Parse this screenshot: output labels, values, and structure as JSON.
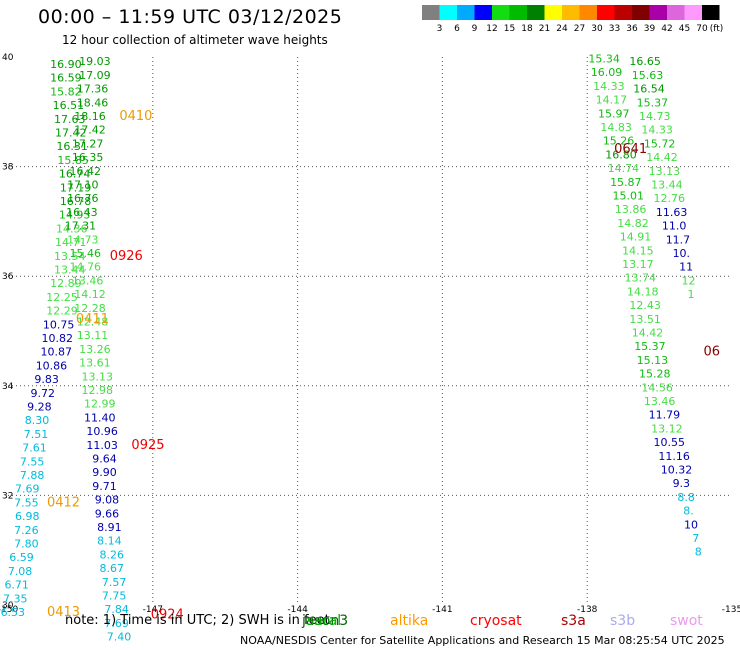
{
  "title": "00:00 – 11:59 UTC 03/12/2025",
  "subtitle": "12 hour collection of altimeter wave heights",
  "note": "note: 1) Time is in UTC; 2) SWH is in feet",
  "footer": "NOAA/NESDIS Center for Satellite Applications and Research    15 Mar 08:25:54 UTC 2025",
  "colorbar": {
    "unit": "(ft)",
    "labels": [
      "3",
      "6",
      "9",
      "12",
      "15",
      "18",
      "21",
      "24",
      "27",
      "30",
      "33",
      "36",
      "39",
      "42",
      "45",
      "70"
    ],
    "colors": [
      "#808080",
      "#00ffff",
      "#00aaff",
      "#0000ff",
      "#11dd11",
      "#00bb00",
      "#008000",
      "#ffff00",
      "#ffbb00",
      "#ff8800",
      "#ff0000",
      "#bb0000",
      "#800000",
      "#aa00aa",
      "#dd66dd",
      "#ff99ff",
      "#000000"
    ]
  },
  "satellites": [
    {
      "name": "jason3",
      "label": "jason3",
      "color": "#006400"
    },
    {
      "name": "saral",
      "label": "saral",
      "color": "#00aa00"
    },
    {
      "name": "altika",
      "label": "altika",
      "color": "#ff9900"
    },
    {
      "name": "cryosat",
      "label": "cryosat",
      "color": "#ff0000"
    },
    {
      "name": "s3a",
      "label": "s3a",
      "color": "#aa0000"
    },
    {
      "name": "s3b",
      "label": "s3b",
      "color": "#aaaaee"
    },
    {
      "name": "swot",
      "label": "swot",
      "color": "#ee99ee"
    }
  ],
  "chart_data": {
    "type": "scatter",
    "xlim": [
      -150,
      -135
    ],
    "ylim": [
      30,
      40
    ],
    "xticks": [
      "-150",
      "-147",
      "-144",
      "-141",
      "-138",
      "-135"
    ],
    "yticks": [
      "30",
      "32",
      "34",
      "36",
      "38",
      "40"
    ],
    "grid": true,
    "band_colors": {
      "b6": "#00bbdd",
      "b9": "#0000aa",
      "b12": "#44dd44",
      "b15": "#11bb11",
      "b18": "#009900",
      "red": "#ee0000",
      "orange": "#ee9900",
      "dred": "#880000"
    },
    "points": [
      {
        "lon": -148.8,
        "lat": 39.8,
        "v": "16.90",
        "b": "b18"
      },
      {
        "lon": -148.8,
        "lat": 39.55,
        "v": "16.59",
        "b": "b18"
      },
      {
        "lon": -148.8,
        "lat": 39.3,
        "v": "15.82",
        "b": "b15"
      },
      {
        "lon": -148.75,
        "lat": 39.05,
        "v": "16.51",
        "b": "b18"
      },
      {
        "lon": -148.72,
        "lat": 38.8,
        "v": "17.63",
        "b": "b18"
      },
      {
        "lon": -148.7,
        "lat": 38.55,
        "v": "17.42",
        "b": "b18"
      },
      {
        "lon": -148.67,
        "lat": 38.3,
        "v": "16.31",
        "b": "b18"
      },
      {
        "lon": -148.65,
        "lat": 38.05,
        "v": "15.85",
        "b": "b15"
      },
      {
        "lon": -148.62,
        "lat": 37.8,
        "v": "16.74",
        "b": "b18"
      },
      {
        "lon": -148.6,
        "lat": 37.55,
        "v": "17.19",
        "b": "b18"
      },
      {
        "lon": -148.6,
        "lat": 37.3,
        "v": "16.78",
        "b": "b18"
      },
      {
        "lon": -148.62,
        "lat": 37.05,
        "v": "14.93",
        "b": "b15"
      },
      {
        "lon": -148.68,
        "lat": 36.8,
        "v": "14.36",
        "b": "b12"
      },
      {
        "lon": -148.7,
        "lat": 36.55,
        "v": "14.71",
        "b": "b12"
      },
      {
        "lon": -148.72,
        "lat": 36.3,
        "v": "13.54",
        "b": "b12"
      },
      {
        "lon": -148.72,
        "lat": 36.05,
        "v": "13.44",
        "b": "b12"
      },
      {
        "lon": -148.8,
        "lat": 35.8,
        "v": "12.89",
        "b": "b12"
      },
      {
        "lon": -148.88,
        "lat": 35.55,
        "v": "12.25",
        "b": "b12"
      },
      {
        "lon": -148.88,
        "lat": 35.3,
        "v": "12.29",
        "b": "b12"
      },
      {
        "lon": -148.95,
        "lat": 35.05,
        "v": "10.75",
        "b": "b9"
      },
      {
        "lon": -148.98,
        "lat": 34.8,
        "v": "10.82",
        "b": "b9"
      },
      {
        "lon": -149.0,
        "lat": 34.55,
        "v": "10.87",
        "b": "b9"
      },
      {
        "lon": -149.1,
        "lat": 34.3,
        "v": "10.86",
        "b": "b9"
      },
      {
        "lon": -149.2,
        "lat": 34.05,
        "v": "9.83",
        "b": "b9"
      },
      {
        "lon": -149.28,
        "lat": 33.8,
        "v": "9.72",
        "b": "b9"
      },
      {
        "lon": -149.35,
        "lat": 33.55,
        "v": "9.28",
        "b": "b9"
      },
      {
        "lon": -149.4,
        "lat": 33.3,
        "v": "8.30",
        "b": "b6"
      },
      {
        "lon": -149.42,
        "lat": 33.05,
        "v": "7.51",
        "b": "b6"
      },
      {
        "lon": -149.45,
        "lat": 32.8,
        "v": "7.61",
        "b": "b6"
      },
      {
        "lon": -149.5,
        "lat": 32.55,
        "v": "7.55",
        "b": "b6"
      },
      {
        "lon": -149.5,
        "lat": 32.3,
        "v": "7.88",
        "b": "b6"
      },
      {
        "lon": -149.6,
        "lat": 32.05,
        "v": "7.69",
        "b": "b6"
      },
      {
        "lon": -149.62,
        "lat": 31.8,
        "v": "7.55",
        "b": "b6"
      },
      {
        "lon": -149.6,
        "lat": 31.55,
        "v": "6.98",
        "b": "b6"
      },
      {
        "lon": -149.62,
        "lat": 31.3,
        "v": "7.26",
        "b": "b6"
      },
      {
        "lon": -149.62,
        "lat": 31.05,
        "v": "7.80",
        "b": "b6"
      },
      {
        "lon": -149.72,
        "lat": 30.8,
        "v": "6.59",
        "b": "b6"
      },
      {
        "lon": -149.75,
        "lat": 30.55,
        "v": "7.08",
        "b": "b6"
      },
      {
        "lon": -149.82,
        "lat": 30.3,
        "v": "6.71",
        "b": "b6"
      },
      {
        "lon": -149.85,
        "lat": 30.05,
        "v": "7.35",
        "b": "b6"
      },
      {
        "lon": -149.9,
        "lat": 29.8,
        "v": "6.53",
        "b": "b6"
      },
      {
        "lon": -148.2,
        "lat": 39.85,
        "v": "19.03",
        "b": "b18"
      },
      {
        "lon": -148.2,
        "lat": 39.6,
        "v": "17.09",
        "b": "b18"
      },
      {
        "lon": -148.25,
        "lat": 39.35,
        "v": "17.36",
        "b": "b18"
      },
      {
        "lon": -148.25,
        "lat": 39.1,
        "v": "18.46",
        "b": "b18"
      },
      {
        "lon": -148.3,
        "lat": 38.85,
        "v": "18.16",
        "b": "b18"
      },
      {
        "lon": -148.3,
        "lat": 38.6,
        "v": "17.42",
        "b": "b18"
      },
      {
        "lon": -148.35,
        "lat": 38.35,
        "v": "17.27",
        "b": "b18"
      },
      {
        "lon": -148.35,
        "lat": 38.1,
        "v": "16.35",
        "b": "b18"
      },
      {
        "lon": -148.4,
        "lat": 37.85,
        "v": "16.42",
        "b": "b18"
      },
      {
        "lon": -148.45,
        "lat": 37.6,
        "v": "17.10",
        "b": "b18"
      },
      {
        "lon": -148.45,
        "lat": 37.35,
        "v": "16.76",
        "b": "b18"
      },
      {
        "lon": -148.47,
        "lat": 37.1,
        "v": "16.43",
        "b": "b18"
      },
      {
        "lon": -148.5,
        "lat": 36.85,
        "v": "17.31",
        "b": "b18"
      },
      {
        "lon": -148.45,
        "lat": 36.6,
        "v": "14.73",
        "b": "b12"
      },
      {
        "lon": -148.4,
        "lat": 36.35,
        "v": "15.46",
        "b": "b15"
      },
      {
        "lon": -148.4,
        "lat": 36.1,
        "v": "14.76",
        "b": "b12"
      },
      {
        "lon": -148.35,
        "lat": 35.85,
        "v": "13.46",
        "b": "b12"
      },
      {
        "lon": -148.3,
        "lat": 35.6,
        "v": "14.12",
        "b": "b12"
      },
      {
        "lon": -148.3,
        "lat": 35.35,
        "v": "12.28",
        "b": "b12"
      },
      {
        "lon": -148.25,
        "lat": 35.1,
        "v": "12.48",
        "b": "b12"
      },
      {
        "lon": -148.25,
        "lat": 34.85,
        "v": "13.11",
        "b": "b12"
      },
      {
        "lon": -148.2,
        "lat": 34.6,
        "v": "13.26",
        "b": "b12"
      },
      {
        "lon": -148.2,
        "lat": 34.35,
        "v": "13.61",
        "b": "b12"
      },
      {
        "lon": -148.15,
        "lat": 34.1,
        "v": "13.13",
        "b": "b12"
      },
      {
        "lon": -148.15,
        "lat": 33.85,
        "v": "12.98",
        "b": "b12"
      },
      {
        "lon": -148.1,
        "lat": 33.6,
        "v": "12.99",
        "b": "b12"
      },
      {
        "lon": -148.1,
        "lat": 33.35,
        "v": "11.40",
        "b": "b9"
      },
      {
        "lon": -148.05,
        "lat": 33.1,
        "v": "10.96",
        "b": "b9"
      },
      {
        "lon": -148.05,
        "lat": 32.85,
        "v": "11.03",
        "b": "b9"
      },
      {
        "lon": -148.0,
        "lat": 32.6,
        "v": "9.64",
        "b": "b9"
      },
      {
        "lon": -148.0,
        "lat": 32.35,
        "v": "9.90",
        "b": "b9"
      },
      {
        "lon": -148.0,
        "lat": 32.1,
        "v": "9.71",
        "b": "b9"
      },
      {
        "lon": -147.95,
        "lat": 31.85,
        "v": "9.08",
        "b": "b9"
      },
      {
        "lon": -147.95,
        "lat": 31.6,
        "v": "9.66",
        "b": "b9"
      },
      {
        "lon": -147.9,
        "lat": 31.35,
        "v": "8.91",
        "b": "b9"
      },
      {
        "lon": -147.9,
        "lat": 31.1,
        "v": "8.14",
        "b": "b6"
      },
      {
        "lon": -147.85,
        "lat": 30.85,
        "v": "8.26",
        "b": "b6"
      },
      {
        "lon": -147.85,
        "lat": 30.6,
        "v": "8.67",
        "b": "b6"
      },
      {
        "lon": -147.8,
        "lat": 30.35,
        "v": "7.57",
        "b": "b6"
      },
      {
        "lon": -147.8,
        "lat": 30.1,
        "v": "7.75",
        "b": "b6"
      },
      {
        "lon": -147.75,
        "lat": 29.85,
        "v": "7.84",
        "b": "b6"
      },
      {
        "lon": -147.75,
        "lat": 29.6,
        "v": "7.69",
        "b": "b6"
      },
      {
        "lon": -147.7,
        "lat": 29.35,
        "v": "7.40",
        "b": "b6"
      },
      {
        "lon": -137.65,
        "lat": 39.9,
        "v": "15.34",
        "b": "b15"
      },
      {
        "lon": -137.6,
        "lat": 39.65,
        "v": "16.09",
        "b": "b15"
      },
      {
        "lon": -137.55,
        "lat": 39.4,
        "v": "14.33",
        "b": "b12"
      },
      {
        "lon": -137.5,
        "lat": 39.15,
        "v": "14.17",
        "b": "b12"
      },
      {
        "lon": -137.45,
        "lat": 38.9,
        "v": "15.97",
        "b": "b15"
      },
      {
        "lon": -137.4,
        "lat": 38.65,
        "v": "14.83",
        "b": "b12"
      },
      {
        "lon": -137.35,
        "lat": 38.4,
        "v": "15.26",
        "b": "b15"
      },
      {
        "lon": -137.3,
        "lat": 38.15,
        "v": "16.80",
        "b": "b18"
      },
      {
        "lon": -137.25,
        "lat": 37.9,
        "v": "14.74",
        "b": "b12"
      },
      {
        "lon": -137.2,
        "lat": 37.65,
        "v": "15.87",
        "b": "b15"
      },
      {
        "lon": -137.15,
        "lat": 37.4,
        "v": "15.01",
        "b": "b15"
      },
      {
        "lon": -137.1,
        "lat": 37.15,
        "v": "13.86",
        "b": "b12"
      },
      {
        "lon": -137.05,
        "lat": 36.9,
        "v": "14.82",
        "b": "b12"
      },
      {
        "lon": -137.0,
        "lat": 36.65,
        "v": "14.91",
        "b": "b12"
      },
      {
        "lon": -136.95,
        "lat": 36.4,
        "v": "14.15",
        "b": "b12"
      },
      {
        "lon": -136.95,
        "lat": 36.15,
        "v": "13.17",
        "b": "b12"
      },
      {
        "lon": -136.9,
        "lat": 35.9,
        "v": "13.74",
        "b": "b12"
      },
      {
        "lon": -136.85,
        "lat": 35.65,
        "v": "14.18",
        "b": "b12"
      },
      {
        "lon": -136.8,
        "lat": 35.4,
        "v": "12.43",
        "b": "b12"
      },
      {
        "lon": -136.8,
        "lat": 35.15,
        "v": "13.51",
        "b": "b12"
      },
      {
        "lon": -136.75,
        "lat": 34.9,
        "v": "14.42",
        "b": "b12"
      },
      {
        "lon": -136.7,
        "lat": 34.65,
        "v": "15.37",
        "b": "b15"
      },
      {
        "lon": -136.65,
        "lat": 34.4,
        "v": "15.13",
        "b": "b15"
      },
      {
        "lon": -136.6,
        "lat": 34.15,
        "v": "15.28",
        "b": "b15"
      },
      {
        "lon": -136.55,
        "lat": 33.9,
        "v": "14.56",
        "b": "b12"
      },
      {
        "lon": -136.5,
        "lat": 33.65,
        "v": "13.46",
        "b": "b12"
      },
      {
        "lon": -136.4,
        "lat": 33.4,
        "v": "11.79",
        "b": "b9"
      },
      {
        "lon": -136.35,
        "lat": 33.15,
        "v": "13.12",
        "b": "b12"
      },
      {
        "lon": -136.3,
        "lat": 32.9,
        "v": "10.55",
        "b": "b9"
      },
      {
        "lon": -136.2,
        "lat": 32.65,
        "v": "11.16",
        "b": "b9"
      },
      {
        "lon": -136.15,
        "lat": 32.4,
        "v": "10.32",
        "b": "b9"
      },
      {
        "lon": -136.05,
        "lat": 32.15,
        "v": "9.3",
        "b": "b9"
      },
      {
        "lon": -135.95,
        "lat": 31.9,
        "v": "8.8",
        "b": "b6"
      },
      {
        "lon": -135.9,
        "lat": 31.65,
        "v": "8.",
        "b": "b6"
      },
      {
        "lon": -135.85,
        "lat": 31.4,
        "v": "10",
        "b": "b9"
      },
      {
        "lon": -135.75,
        "lat": 31.15,
        "v": "7",
        "b": "b6"
      },
      {
        "lon": -135.7,
        "lat": 30.9,
        "v": "8",
        "b": "b6"
      },
      {
        "lon": -136.8,
        "lat": 39.85,
        "v": "16.65",
        "b": "b18"
      },
      {
        "lon": -136.75,
        "lat": 39.6,
        "v": "15.63",
        "b": "b15"
      },
      {
        "lon": -136.72,
        "lat": 39.35,
        "v": "16.54",
        "b": "b18"
      },
      {
        "lon": -136.65,
        "lat": 39.1,
        "v": "15.37",
        "b": "b15"
      },
      {
        "lon": -136.6,
        "lat": 38.85,
        "v": "14.73",
        "b": "b12"
      },
      {
        "lon": -136.55,
        "lat": 38.6,
        "v": "14.33",
        "b": "b12"
      },
      {
        "lon": -136.5,
        "lat": 38.35,
        "v": "15.72",
        "b": "b15"
      },
      {
        "lon": -136.45,
        "lat": 38.1,
        "v": "14.42",
        "b": "b12"
      },
      {
        "lon": -136.4,
        "lat": 37.85,
        "v": "13.13",
        "b": "b12"
      },
      {
        "lon": -136.35,
        "lat": 37.6,
        "v": "13.44",
        "b": "b12"
      },
      {
        "lon": -136.3,
        "lat": 37.35,
        "v": "12.76",
        "b": "b12"
      },
      {
        "lon": -136.25,
        "lat": 37.1,
        "v": "11.63",
        "b": "b9"
      },
      {
        "lon": -136.2,
        "lat": 36.85,
        "v": "11.0",
        "b": "b9"
      },
      {
        "lon": -136.12,
        "lat": 36.6,
        "v": "11.7",
        "b": "b9"
      },
      {
        "lon": -136.05,
        "lat": 36.35,
        "v": "10.",
        "b": "b9"
      },
      {
        "lon": -135.95,
        "lat": 36.1,
        "v": "11",
        "b": "b9"
      },
      {
        "lon": -135.9,
        "lat": 35.85,
        "v": "12",
        "b": "b12"
      },
      {
        "lon": -135.85,
        "lat": 35.6,
        "v": "1",
        "b": "b12"
      }
    ],
    "tracks": [
      {
        "lon": -147.35,
        "lat": 38.85,
        "label": "0410",
        "b": "orange"
      },
      {
        "lon": -147.55,
        "lat": 36.3,
        "label": "0926",
        "b": "red"
      },
      {
        "lon": -148.25,
        "lat": 35.15,
        "label": "0411",
        "b": "orange"
      },
      {
        "lon": -147.1,
        "lat": 32.85,
        "label": "0925",
        "b": "red"
      },
      {
        "lon": -148.85,
        "lat": 31.8,
        "label": "0412",
        "b": "orange"
      },
      {
        "lon": -148.85,
        "lat": 29.8,
        "label": "0413",
        "b": "orange"
      },
      {
        "lon": -146.7,
        "lat": 29.75,
        "label": "0924",
        "b": "red"
      },
      {
        "lon": -137.1,
        "lat": 38.25,
        "label": "0641",
        "b": "dred"
      },
      {
        "lon": -135.42,
        "lat": 34.55,
        "label": "06",
        "b": "dred"
      }
    ]
  }
}
